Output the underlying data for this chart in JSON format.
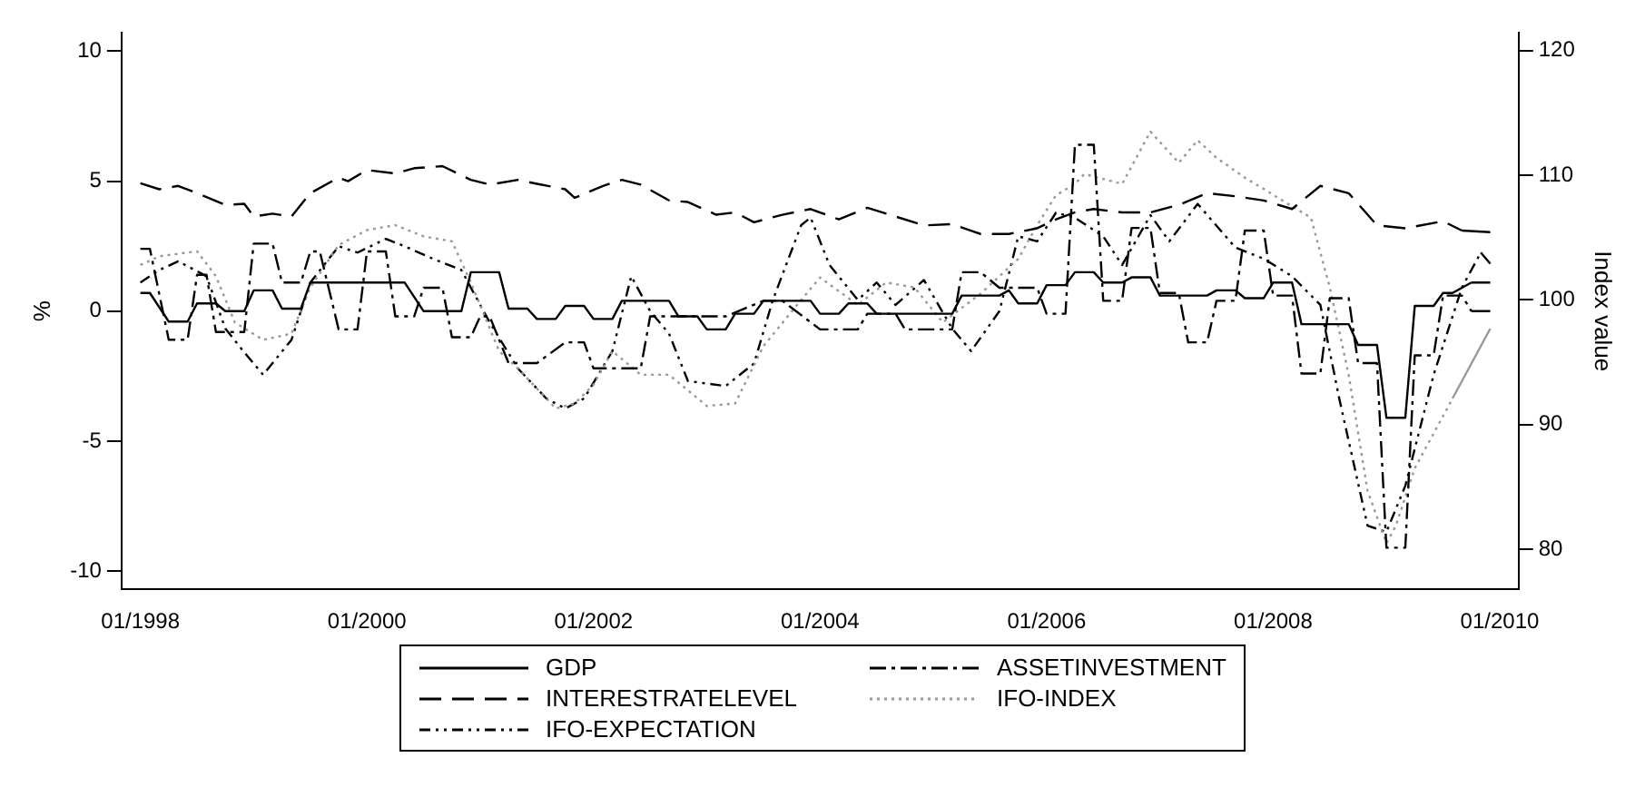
{
  "chart_data": {
    "type": "line",
    "ylabel": "%",
    "y2label": "Index value",
    "xlim": [
      "1997-11",
      "2010-03"
    ],
    "xticks": [
      {
        "value": "1998-01",
        "label": "01/1998"
      },
      {
        "value": "2000-01",
        "label": "01/2000"
      },
      {
        "value": "2002-01",
        "label": "01/2002"
      },
      {
        "value": "2004-01",
        "label": "01/2004"
      },
      {
        "value": "2006-01",
        "label": "01/2006"
      },
      {
        "value": "2008-01",
        "label": "01/2008"
      },
      {
        "value": "2010-01",
        "label": "01/2010"
      }
    ],
    "ylim": [
      -10.7,
      10.7
    ],
    "yticks": [
      -10,
      -5,
      0,
      5,
      10
    ],
    "y2lim": [
      76.8,
      121.4
    ],
    "y2ticks": [
      80,
      90,
      100,
      110,
      120
    ],
    "grid": false,
    "legend": "bottom",
    "marker": "none",
    "series": [
      {
        "name": "GDP",
        "color": "#000000",
        "line_style": "solid",
        "x": [
          "1998-01",
          "1998-02",
          "1998-04",
          "1998-06",
          "1998-07",
          "1998-09",
          "1998-10",
          "1998-12",
          "1999-01",
          "1999-03",
          "1999-04",
          "1999-06",
          "1999-07",
          "2000-05",
          "2000-07",
          "2000-11",
          "2000-12",
          "2001-03",
          "2001-04",
          "2001-06",
          "2001-07",
          "2001-09",
          "2001-10",
          "2001-12",
          "2002-01",
          "2002-03",
          "2002-04",
          "2002-09",
          "2002-10",
          "2002-12",
          "2003-01",
          "2003-03",
          "2003-04",
          "2003-06",
          "2003-07",
          "2003-12",
          "2004-01",
          "2004-03",
          "2004-04",
          "2004-06",
          "2004-07",
          "2005-03",
          "2005-04",
          "2005-08",
          "2005-09",
          "2005-10",
          "2005-12",
          "2006-01",
          "2006-03",
          "2006-04",
          "2006-06",
          "2006-07",
          "2006-09",
          "2006-10",
          "2006-12",
          "2007-01",
          "2007-06",
          "2007-07",
          "2007-09",
          "2007-10",
          "2007-12",
          "2008-01",
          "2008-03",
          "2008-04",
          "2008-09",
          "2008-10",
          "2008-12",
          "2009-01",
          "2009-03",
          "2009-04",
          "2009-06",
          "2009-07",
          "2009-08",
          "2009-10",
          "2009-12"
        ],
        "values": [
          0.7,
          0.7,
          -0.4,
          -0.4,
          0.3,
          0.3,
          0,
          0,
          0.8,
          0.8,
          0.1,
          0.1,
          1.1,
          1.1,
          0,
          0,
          1.5,
          1.5,
          0.1,
          0.1,
          -0.3,
          -0.3,
          0.2,
          0.2,
          -0.3,
          -0.3,
          0.4,
          0.4,
          -0.2,
          -0.2,
          -0.7,
          -0.7,
          -0.1,
          -0.1,
          0.4,
          0.4,
          -0.1,
          -0.1,
          0.3,
          0.3,
          -0.1,
          -0.1,
          0.6,
          0.6,
          0.8,
          0.3,
          0.3,
          1.0,
          1.0,
          1.5,
          1.5,
          1.1,
          1.1,
          1.3,
          1.3,
          0.6,
          0.6,
          0.8,
          0.8,
          0.5,
          0.5,
          1.1,
          1.1,
          -0.5,
          -0.5,
          -1.3,
          -1.3,
          -4.1,
          -4.1,
          0.2,
          0.2,
          0.7,
          0.7,
          1.1,
          1.1
        ]
      },
      {
        "name": "ASSETINVESTMENT",
        "color": "#000000",
        "line_style": "dashdot",
        "x": [
          "1998-01",
          "1998-02",
          "1998-04",
          "1998-06",
          "1998-07",
          "1998-08",
          "1998-09",
          "1998-12",
          "1999-01",
          "1999-03",
          "1999-04",
          "1999-06",
          "1999-07",
          "1999-08",
          "1999-10",
          "1999-12",
          "2000-01",
          "2000-03",
          "2000-04",
          "2000-06",
          "2000-07",
          "2000-09",
          "2000-10",
          "2000-12",
          "2001-01",
          "2001-02",
          "2001-04",
          "2001-07",
          "2001-10",
          "2001-12",
          "2002-01",
          "2002-06",
          "2002-07",
          "2003-03",
          "2003-07",
          "2003-09",
          "2004-01",
          "2004-05",
          "2004-06",
          "2004-09",
          "2004-10",
          "2005-03",
          "2005-04",
          "2005-06",
          "2005-08",
          "2005-12",
          "2006-01",
          "2006-03",
          "2006-04",
          "2006-06",
          "2006-07",
          "2006-09",
          "2006-10",
          "2006-12",
          "2007-01",
          "2007-03",
          "2007-04",
          "2007-06",
          "2007-07",
          "2007-09",
          "2007-10",
          "2007-12",
          "2008-01",
          "2008-03",
          "2008-04",
          "2008-06",
          "2008-07",
          "2008-09",
          "2008-10",
          "2008-12",
          "2009-01",
          "2009-03",
          "2009-04",
          "2009-06",
          "2009-07",
          "2009-09",
          "2009-10",
          "2009-12"
        ],
        "values": [
          2.4,
          2.4,
          -1.1,
          -1.1,
          1.4,
          1.4,
          -0.8,
          -0.8,
          2.6,
          2.6,
          1.1,
          1.1,
          2.3,
          2.3,
          -0.7,
          -0.7,
          2.3,
          2.3,
          -0.2,
          -0.2,
          0.9,
          0.9,
          -1.0,
          -1.0,
          -0.2,
          -0.2,
          -2.0,
          -2.0,
          -1.2,
          -1.2,
          -2.2,
          -2.2,
          -0.2,
          -0.2,
          0.4,
          0.4,
          -0.7,
          -0.7,
          -0.1,
          -0.1,
          -0.7,
          -0.7,
          1.5,
          1.5,
          0.9,
          0.9,
          -0.1,
          -0.1,
          6.4,
          6.4,
          0.4,
          0.4,
          3.2,
          3.2,
          0.7,
          0.7,
          -1.2,
          -1.2,
          0.4,
          0.4,
          3.1,
          3.1,
          0.6,
          0.6,
          -2.4,
          -2.4,
          0.5,
          0.5,
          -2.0,
          -2.0,
          -9.1,
          -9.1,
          -1.7,
          -1.7,
          0.6,
          0.6,
          0,
          0
        ]
      },
      {
        "name": "INTERESTRATELEVEL",
        "color": "#000000",
        "line_style": "dashed",
        "x": [
          "1998-01",
          "1998-03",
          "1998-05",
          "1998-07",
          "1998-10",
          "1998-12",
          "1999-01",
          "1999-03",
          "1999-05",
          "1999-07",
          "1999-10",
          "1999-11",
          "2000-01",
          "2000-04",
          "2000-06",
          "2000-09",
          "2000-12",
          "2001-02",
          "2001-05",
          "2001-07",
          "2001-10",
          "2001-11",
          "2002-02",
          "2002-04",
          "2002-06",
          "2002-09",
          "2002-11",
          "2003-02",
          "2003-04",
          "2003-06",
          "2003-09",
          "2003-12",
          "2004-03",
          "2004-06",
          "2004-09",
          "2004-12",
          "2005-03",
          "2005-06",
          "2005-09",
          "2005-12",
          "2006-02",
          "2006-04",
          "2006-06",
          "2006-09",
          "2006-12",
          "2007-03",
          "2007-06",
          "2007-09",
          "2007-12",
          "2008-03",
          "2008-06",
          "2008-09",
          "2008-12",
          "2009-03",
          "2009-07",
          "2009-09",
          "2009-12"
        ],
        "values": [
          4.92,
          4.69,
          4.82,
          4.54,
          4.09,
          4.13,
          3.64,
          3.75,
          3.64,
          4.54,
          5.14,
          5.0,
          5.43,
          5.3,
          5.5,
          5.58,
          5.05,
          4.87,
          5.05,
          4.9,
          4.69,
          4.36,
          4.82,
          5.05,
          4.87,
          4.26,
          4.2,
          3.71,
          3.8,
          3.42,
          3.71,
          3.93,
          3.53,
          3.98,
          3.64,
          3.3,
          3.35,
          2.97,
          2.97,
          3.19,
          3.53,
          3.8,
          3.93,
          3.8,
          3.8,
          4.09,
          4.54,
          4.42,
          4.26,
          3.93,
          4.82,
          4.54,
          3.3,
          3.19,
          3.46,
          3.1,
          3.04
        ]
      },
      {
        "name": "IFO-INDEX",
        "color": "#999999",
        "line_style": "dotted",
        "axis": "y2",
        "x": [
          "1998-01",
          "1998-03",
          "1998-07",
          "1998-09",
          "1998-11",
          "1999-02",
          "1999-05",
          "1999-07",
          "1999-10",
          "2000-01",
          "2000-04",
          "2000-07",
          "2000-10",
          "2000-12",
          "2001-03",
          "2001-05",
          "2001-09",
          "2001-11",
          "2002-01",
          "2002-03",
          "2002-06",
          "2002-09",
          "2003-01",
          "2003-04",
          "2003-07",
          "2003-11",
          "2004-01",
          "2004-05",
          "2004-08",
          "2004-11",
          "2005-02",
          "2005-06",
          "2005-10",
          "2005-12",
          "2006-02",
          "2006-04",
          "2006-05",
          "2006-09",
          "2006-12",
          "2007-03",
          "2007-05",
          "2007-07",
          "2007-10",
          "2007-12",
          "2008-03",
          "2008-05",
          "2008-07",
          "2008-09",
          "2008-11",
          "2009-01",
          "2009-02",
          "2009-04",
          "2009-08",
          "2009-12"
        ],
        "values": [
          102.8,
          103.5,
          103.9,
          101.9,
          98.2,
          96.8,
          97.3,
          101,
          104.4,
          105.6,
          106,
          105.1,
          104.7,
          101.4,
          95.9,
          94.5,
          91.3,
          91.7,
          93.2,
          95.9,
          94,
          94,
          91.5,
          91.7,
          96.3,
          100,
          101.8,
          99.6,
          101.4,
          101,
          98.2,
          100.5,
          103.3,
          106,
          108.4,
          109.3,
          110.1,
          109.3,
          113.5,
          111,
          112.8,
          111.4,
          109.8,
          108.9,
          107.5,
          106.6,
          101,
          94,
          84.7,
          80.5,
          81.9,
          86.5,
          92.1,
          97.7
        ]
      },
      {
        "name": "IFO-EXPECTATION",
        "color": "#000000",
        "line_style": "dashdotdot",
        "axis": "y2",
        "x": [
          "1998-01",
          "1998-03",
          "1998-05",
          "1998-08",
          "1998-10",
          "1998-12",
          "1999-02",
          "1999-05",
          "1999-07",
          "1999-10",
          "1999-12",
          "2000-03",
          "2000-05",
          "2000-08",
          "2000-11",
          "2001-02",
          "2001-05",
          "2001-08",
          "2001-10",
          "2001-12",
          "2002-03",
          "2002-05",
          "2002-07",
          "2002-09",
          "2002-11",
          "2003-03",
          "2003-06",
          "2003-08",
          "2003-11",
          "2003-12",
          "2004-02",
          "2004-05",
          "2004-07",
          "2004-09",
          "2004-12",
          "2005-03",
          "2005-05",
          "2005-08",
          "2005-10",
          "2005-12",
          "2006-02",
          "2006-04",
          "2006-07",
          "2006-09",
          "2006-12",
          "2007-02",
          "2007-05",
          "2007-09",
          "2007-12",
          "2008-03",
          "2008-06",
          "2008-08",
          "2008-11",
          "2009-01",
          "2009-03",
          "2009-06",
          "2009-09",
          "2009-11",
          "2009-12"
        ],
        "values": [
          101.4,
          102.4,
          103.1,
          101.9,
          97.7,
          95.8,
          94,
          96.8,
          101.4,
          104.3,
          103.8,
          104.9,
          104.3,
          103.3,
          102.4,
          98.2,
          94.5,
          92.1,
          91.3,
          92.1,
          95.9,
          101.9,
          99.1,
          97.3,
          93.5,
          93.1,
          94.9,
          100,
          106,
          106.6,
          102.8,
          100,
          101.4,
          99.6,
          101.6,
          97.7,
          95.9,
          99.1,
          105.1,
          104.7,
          107,
          106.6,
          105.1,
          102.8,
          106.8,
          104.7,
          107.7,
          104.2,
          103.3,
          101.9,
          99.6,
          92.1,
          81.9,
          81.4,
          85.1,
          94,
          101,
          103.8,
          102.9
        ]
      }
    ]
  }
}
